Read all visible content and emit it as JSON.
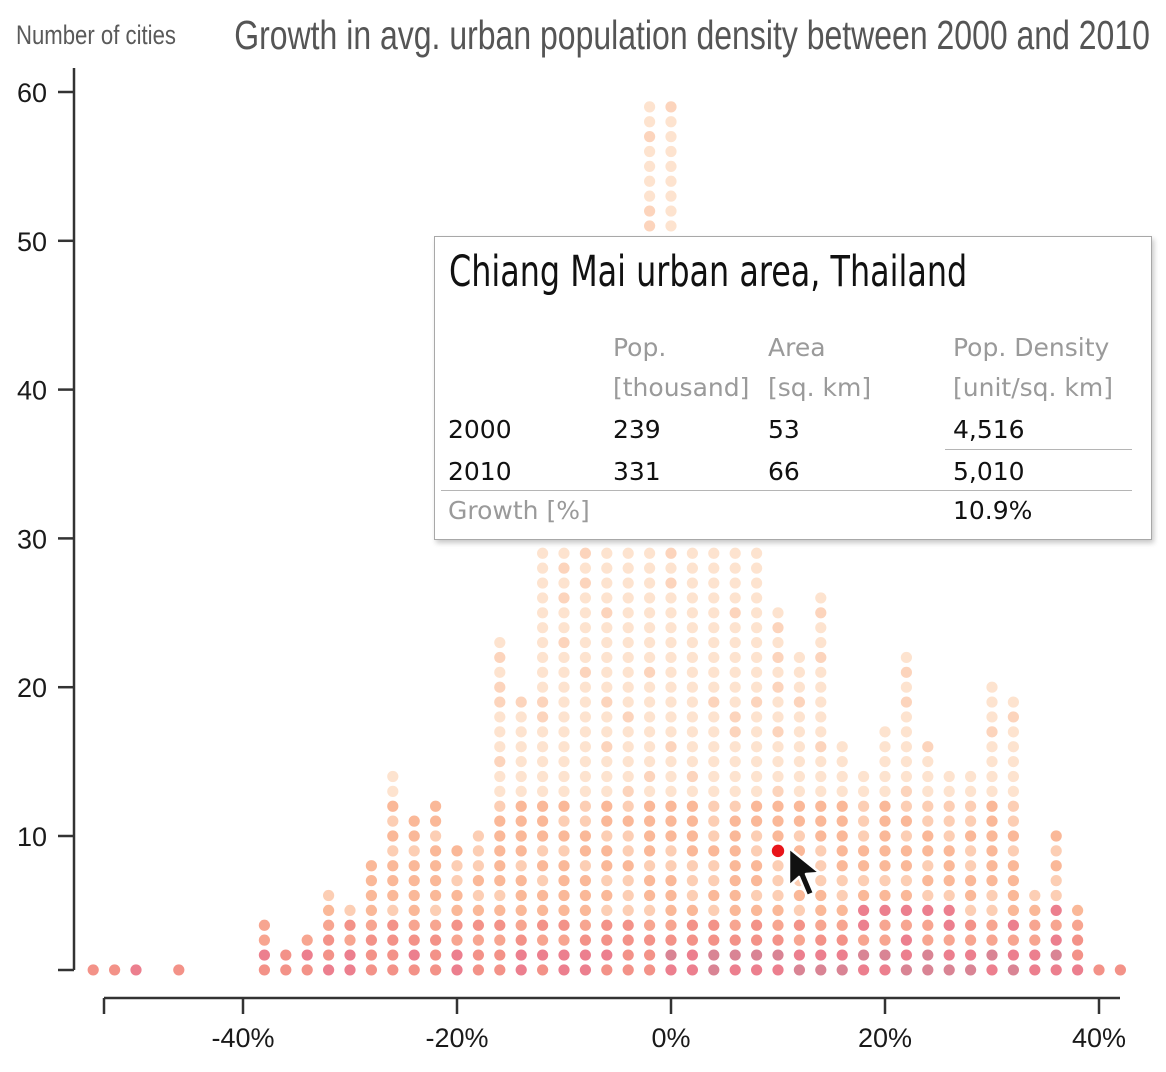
{
  "chart_data": {
    "type": "dot-histogram",
    "title": "Growth in avg. urban population density between 2000 and 2010",
    "ylabel": "Number of cities",
    "xlabel": "",
    "xlim": [
      -53,
      43
    ],
    "ylim": [
      0,
      62
    ],
    "x_bin_width": 2,
    "x_ticks": [
      -40,
      -20,
      0,
      20,
      40
    ],
    "x_tick_labels": [
      "-40%",
      "-20%",
      "0%",
      "20%",
      "40%"
    ],
    "y_ticks": [
      10,
      20,
      30,
      40,
      50,
      60
    ],
    "y_tick_labels": [
      "10",
      "20",
      "30",
      "40",
      "50",
      "60"
    ],
    "bins_x": [
      -54,
      -52,
      -50,
      -46,
      -38,
      -36,
      -34,
      -32,
      -30,
      -28,
      -26,
      -24,
      -22,
      -20,
      -18,
      -16,
      -14,
      -12,
      -10,
      -8,
      -6,
      -4,
      -2,
      0,
      2,
      4,
      6,
      8,
      10,
      12,
      14,
      16,
      18,
      20,
      22,
      24,
      26,
      28,
      30,
      32,
      34,
      36,
      38,
      40,
      42
    ],
    "counts": [
      1,
      1,
      1,
      1,
      4,
      2,
      3,
      6,
      5,
      8,
      14,
      11,
      12,
      9,
      10,
      23,
      19,
      30,
      30,
      30,
      30,
      30,
      59,
      59,
      30,
      30,
      30,
      30,
      25,
      22,
      26,
      16,
      14,
      17,
      22,
      16,
      14,
      14,
      20,
      19,
      6,
      10,
      5,
      1,
      1
    ],
    "highlighted_point": {
      "x": 10,
      "y": 9
    }
  },
  "tooltip": {
    "title": "Chiang Mai urban area, Thailand",
    "columns": [
      {
        "line1": "Pop.",
        "line2": "[thousand]"
      },
      {
        "line1": "Area",
        "line2": "[sq. km]"
      },
      {
        "line1": "Pop. Density",
        "line2": "[unit/sq. km]"
      }
    ],
    "rows": [
      {
        "label": "2000",
        "pop": "239",
        "area": "53",
        "density": "4,516"
      },
      {
        "label": "2010",
        "pop": "331",
        "area": "66",
        "density": "5,010"
      }
    ],
    "growth": {
      "label": "Growth [%]",
      "value": "10.9%"
    }
  },
  "colors": {
    "dot_light": "#fde3cf",
    "dot_mid": "#fab898",
    "dot_strong": "#f39288",
    "dot_pink": "#ec7f8e",
    "dot_deep": "#d98494",
    "highlight": "#e8141a",
    "axis": "#333333"
  }
}
